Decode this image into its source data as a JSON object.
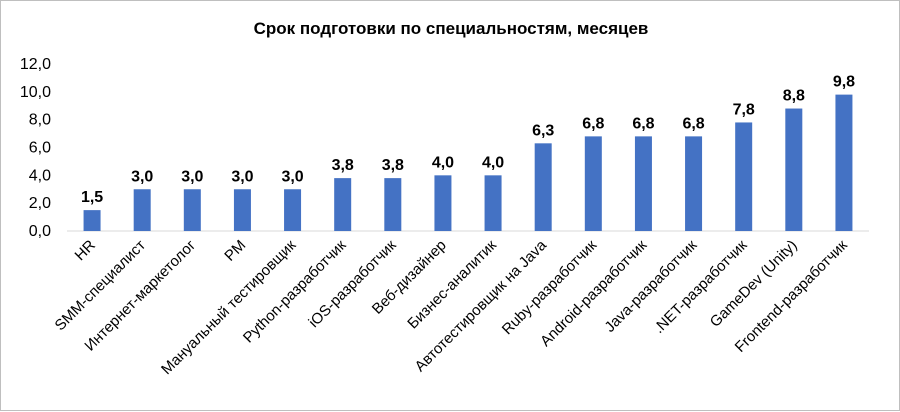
{
  "chart_data": {
    "type": "bar",
    "title": "Срок подготовки по специальностям, месяцев",
    "xlabel": "",
    "ylabel": "",
    "ylim": [
      0,
      12
    ],
    "yticks": [
      "0,0",
      "2,0",
      "4,0",
      "6,0",
      "8,0",
      "10,0",
      "12,0"
    ],
    "grid": false,
    "legend": "none",
    "bar_color": "#4472C4",
    "categories": [
      "HR",
      "SMM-специалист",
      "Интернет-маркетолог",
      "PM",
      "Мануальный тестировщик",
      "Python-разработчик",
      "iOS-разработчик",
      "Веб-дизайнер",
      "Бизнес-аналитик",
      "Автотестировщик на Java",
      "Ruby-разработчик",
      "Android-разработчик",
      "Java-разработчик",
      ".NET-разработчик",
      "GameDev (Unity)",
      "Frontend-разработчик"
    ],
    "values": [
      1.5,
      3.0,
      3.0,
      3.0,
      3.0,
      3.8,
      3.8,
      4.0,
      4.0,
      6.3,
      6.8,
      6.8,
      6.8,
      7.8,
      8.8,
      9.8
    ],
    "data_labels": [
      "1,5",
      "3,0",
      "3,0",
      "3,0",
      "3,0",
      "3,8",
      "3,8",
      "4,0",
      "4,0",
      "6,3",
      "6,8",
      "6,8",
      "6,8",
      "7,8",
      "8,8",
      "9,8"
    ]
  }
}
